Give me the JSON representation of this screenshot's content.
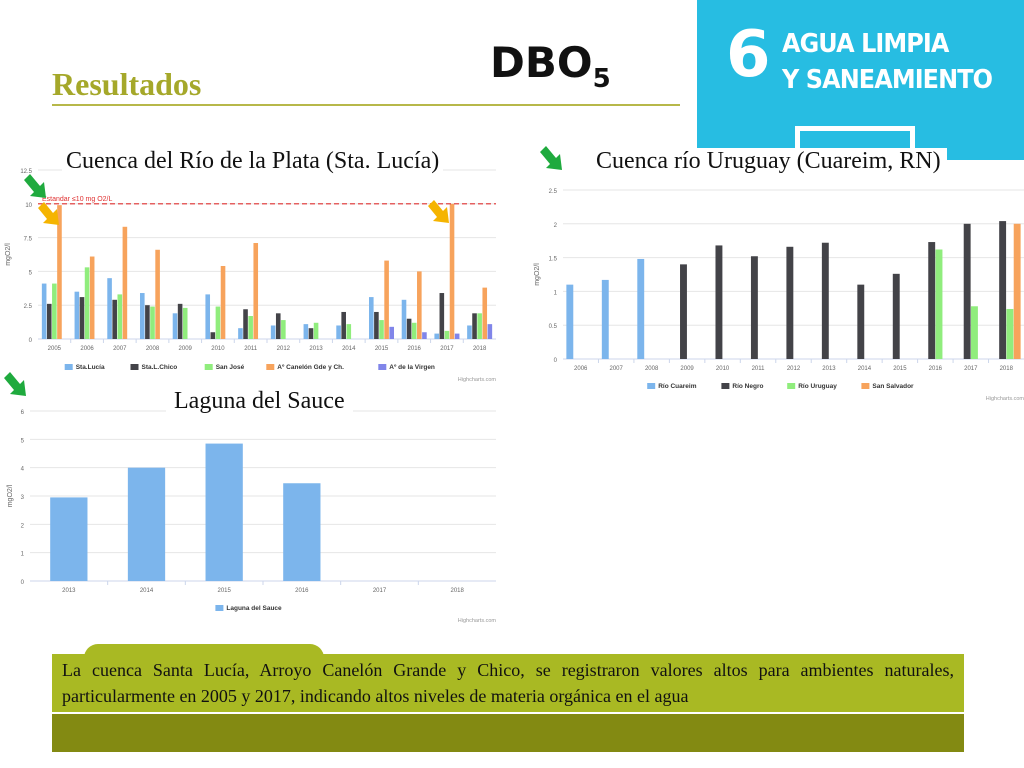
{
  "slide": {
    "section_title": "Resultados",
    "main_title": "DBO",
    "main_title_sub": "5",
    "sdg": {
      "number": "6",
      "line1": "AGUA LIMPIA",
      "line2": "Y SANEAMIENTO",
      "color": "#27bde2"
    },
    "footer_text": "La cuenca Santa Lucía, Arroyo Canelón Grande y Chico, se registraron valores altos para ambientes naturales, particularmente en 2005 y 2017, indicando altos niveles de materia orgánica en el agua",
    "accent_color": "#a9b923",
    "credit": "Highcharts.com"
  },
  "chart_data": [
    {
      "type": "bar",
      "title": "Cuenca del Río de la Plata (Sta. Lucía)",
      "ylabel": "mgO2/l",
      "ylim": [
        0,
        12.5
      ],
      "yticks": [
        0,
        2.5,
        5,
        7.5,
        10,
        12.5
      ],
      "categories": [
        "2005",
        "2006",
        "2007",
        "2008",
        "2009",
        "2010",
        "2011",
        "2012",
        "2013",
        "2014",
        "2015",
        "2016",
        "2017",
        "2018"
      ],
      "reference_line": {
        "value": 10,
        "label": "Estandar ≤10 mg O2/L",
        "color": "#e03030"
      },
      "series": [
        {
          "name": "Sta.Lucía",
          "color": "#7cb5ec",
          "values": [
            4.1,
            3.5,
            4.5,
            3.4,
            1.9,
            3.3,
            0.8,
            1.0,
            1.1,
            1.0,
            3.1,
            2.9,
            0.4,
            1.0
          ]
        },
        {
          "name": "Sta.L.Chico",
          "color": "#434348",
          "values": [
            2.6,
            3.1,
            2.9,
            2.5,
            2.6,
            0.5,
            2.2,
            1.9,
            0.8,
            2.0,
            2.0,
            1.5,
            3.4,
            1.9
          ]
        },
        {
          "name": "San José",
          "color": "#90ed7d",
          "values": [
            4.1,
            5.3,
            3.3,
            2.4,
            2.3,
            2.4,
            1.7,
            1.4,
            1.2,
            1.1,
            1.4,
            1.2,
            0.6,
            1.9
          ]
        },
        {
          "name": "Aº Canelón Gde y Ch.",
          "color": "#f7a35c",
          "values": [
            9.9,
            6.1,
            8.3,
            6.6,
            null,
            5.4,
            7.1,
            null,
            null,
            null,
            5.8,
            5.0,
            10.0,
            3.8
          ]
        },
        {
          "name": "Aº de la Virgen",
          "color": "#8085e9",
          "values": [
            null,
            null,
            null,
            null,
            null,
            null,
            null,
            null,
            null,
            null,
            0.9,
            0.5,
            0.4,
            1.1
          ]
        }
      ],
      "credit": "Highcharts.com"
    },
    {
      "type": "bar",
      "title": "Cuenca río Uruguay (Cuareim, RN)",
      "ylabel": "mgO2/l",
      "ylim": [
        0,
        2.5
      ],
      "yticks": [
        0,
        0.5,
        1,
        1.5,
        2,
        2.5
      ],
      "categories": [
        "2006",
        "2007",
        "2008",
        "2009",
        "2010",
        "2011",
        "2012",
        "2013",
        "2014",
        "2015",
        "2016",
        "2017",
        "2018"
      ],
      "series": [
        {
          "name": "Río Cuareim",
          "color": "#7cb5ec",
          "values": [
            1.1,
            1.17,
            1.48,
            null,
            null,
            null,
            null,
            null,
            null,
            null,
            null,
            null,
            null
          ]
        },
        {
          "name": "Río Negro",
          "color": "#434348",
          "values": [
            null,
            null,
            null,
            1.4,
            1.68,
            1.52,
            1.66,
            1.72,
            1.1,
            1.26,
            1.73,
            2.0,
            2.04
          ]
        },
        {
          "name": "Río Uruguay",
          "color": "#90ed7d",
          "values": [
            null,
            null,
            null,
            null,
            null,
            null,
            null,
            null,
            null,
            null,
            1.62,
            0.78,
            0.74
          ]
        },
        {
          "name": "San Salvador",
          "color": "#f7a35c",
          "values": [
            null,
            null,
            null,
            null,
            null,
            null,
            null,
            null,
            null,
            null,
            null,
            null,
            2.0
          ]
        }
      ],
      "credit": "Highcharts.com"
    },
    {
      "type": "bar",
      "title": "Laguna del Sauce",
      "ylabel": "mgO2/l",
      "ylim": [
        0,
        6
      ],
      "yticks": [
        0,
        1,
        2,
        3,
        4,
        5,
        6
      ],
      "categories": [
        "2013",
        "2014",
        "2015",
        "2016",
        "2017",
        "2018"
      ],
      "series": [
        {
          "name": "Laguna del Sauce",
          "color": "#7cb5ec",
          "values": [
            2.95,
            4.0,
            4.85,
            3.45,
            null,
            null
          ]
        }
      ],
      "credit": "Highcharts.com"
    }
  ]
}
